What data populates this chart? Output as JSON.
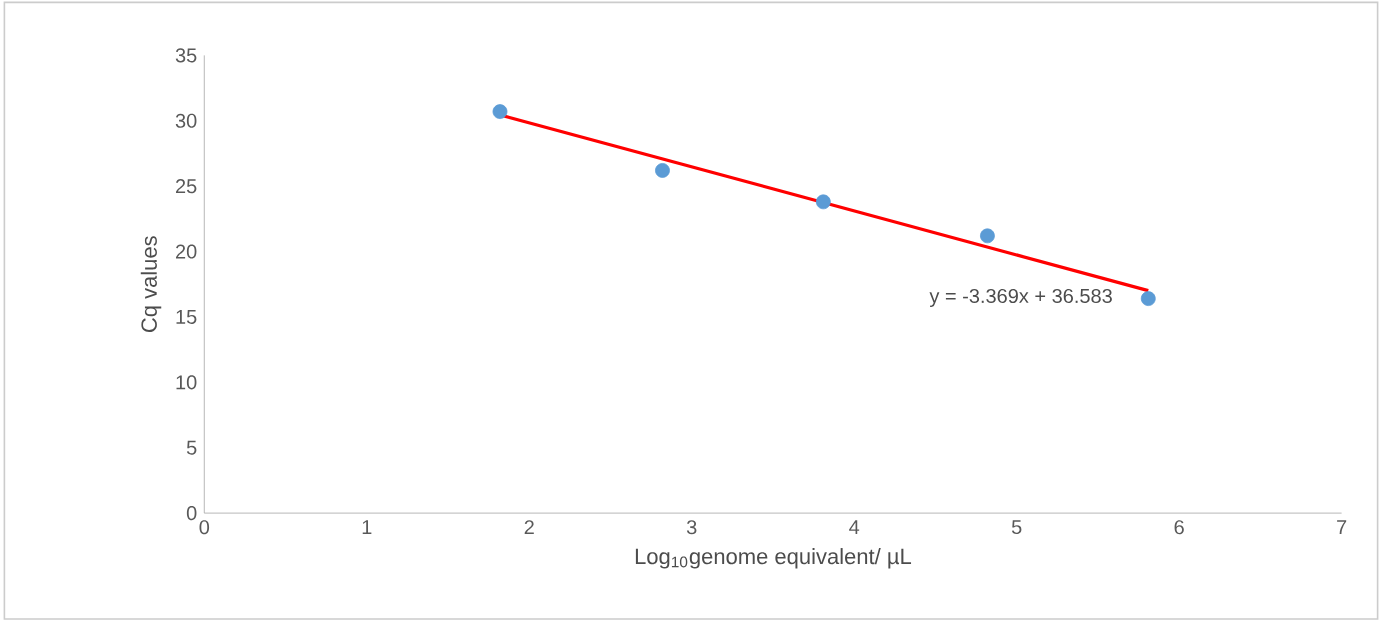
{
  "chart_data": {
    "type": "scatter",
    "xlabel": "Log$_{10}$genome equivalent/ µL",
    "ylabel": "Cq values",
    "x": [
      1.82,
      2.82,
      3.81,
      4.82,
      5.81
    ],
    "series": [
      {
        "color": "#5b9bd5",
        "marker": "circle",
        "values": [
          30.7,
          26.2,
          23.8,
          21.2,
          16.4
        ]
      },
      {
        "type": "line",
        "color": "#ff0000",
        "marker": "none",
        "line_style": "solid",
        "x": [
          1.82,
          5.81
        ],
        "values": [
          30.45,
          17.01
        ]
      }
    ],
    "annotations": [
      "y = -3.369x + 36.583"
    ],
    "xlim": [
      0,
      7
    ],
    "ylim": [
      0,
      35
    ],
    "xticks": [
      0,
      1,
      2,
      3,
      4,
      5,
      6,
      7
    ],
    "yticks": [
      0,
      5,
      10,
      15,
      20,
      25,
      30,
      35
    ],
    "grid": false
  }
}
